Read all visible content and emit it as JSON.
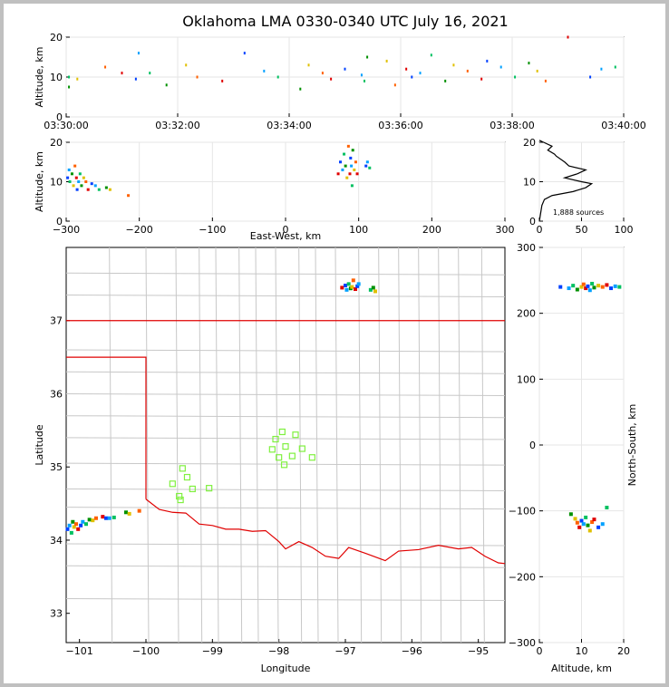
{
  "title": "Oklahoma LMA 0330-0340 UTC July 16, 2021",
  "colors": {
    "frame": "#c0c0c0",
    "state_border": "#e00000",
    "county": "#c8c8c8",
    "station": "#80f040"
  },
  "sources_label": "1,888 sources",
  "panels": {
    "time_height": {
      "ylabel": "Altitude, km",
      "xticks": [
        "03:30:00",
        "03:32:00",
        "03:34:00",
        "03:36:00",
        "03:38:00",
        "03:40:00"
      ],
      "yticks": [
        "0",
        "10",
        "20"
      ]
    },
    "ew_height": {
      "ylabel": "Altitude, km",
      "xlabel": "East-West, km",
      "xticks": [
        "−300",
        "−200",
        "−100",
        "0",
        "100",
        "200",
        "300"
      ],
      "yticks": [
        "0",
        "10",
        "20"
      ]
    },
    "histogram": {
      "xticks": [
        "0",
        "50",
        "100"
      ],
      "yticks": [
        "0",
        "10",
        "20"
      ]
    },
    "map": {
      "xlabel": "Longitude",
      "ylabel": "Latitude",
      "xticks": [
        "−101",
        "−100",
        "−99",
        "−98",
        "−97",
        "−96",
        "−95"
      ],
      "yticks": [
        "33",
        "34",
        "35",
        "36",
        "37"
      ]
    },
    "ns_height": {
      "xlabel": "Altitude, km",
      "ylabel": "North-South, km",
      "xticks": [
        "0",
        "10",
        "20"
      ],
      "yticks": [
        "−300",
        "−200",
        "−100",
        "0",
        "100",
        "200",
        "300"
      ]
    }
  },
  "chart_data": [
    {
      "type": "scatter",
      "name": "time-height",
      "x_unit": "minutes after 03:30 UTC",
      "xlim": [
        0,
        10
      ],
      "ylim": [
        0,
        20
      ],
      "x": [
        0.05,
        0.05,
        0.2,
        0.7,
        1.0,
        1.25,
        1.3,
        1.5,
        1.8,
        2.15,
        2.35,
        2.8,
        3.2,
        3.55,
        3.8,
        4.2,
        4.35,
        4.6,
        4.75,
        5.0,
        5.3,
        5.35,
        5.4,
        5.75,
        5.9,
        6.1,
        6.2,
        6.35,
        6.55,
        6.8,
        6.95,
        7.2,
        7.45,
        7.55,
        7.8,
        8.05,
        8.3,
        8.45,
        8.6,
        9.0,
        9.4,
        9.6,
        9.85
      ],
      "y": [
        10,
        7.5,
        9.5,
        12.5,
        11,
        9.5,
        16,
        11,
        8,
        13,
        10,
        9,
        16,
        11.5,
        10,
        7,
        13,
        11,
        9.5,
        12,
        10.5,
        9,
        15,
        14,
        8,
        12,
        10,
        11,
        15.5,
        9,
        13,
        11.5,
        9.5,
        14,
        12.5,
        10,
        13.5,
        11.5,
        9,
        20,
        10,
        12,
        12.5
      ]
    },
    {
      "type": "scatter",
      "name": "east-west vs altitude",
      "xlim": [
        -300,
        300
      ],
      "ylim": [
        0,
        20
      ],
      "x": [
        -298,
        -296,
        -295,
        -292,
        -290,
        -288,
        -286,
        -285,
        -283,
        -281,
        -279,
        -276,
        -273,
        -270,
        -265,
        -260,
        -255,
        -245,
        -240,
        -215,
        72,
        75,
        78,
        80,
        82,
        84,
        86,
        88,
        89,
        90,
        91,
        92,
        94,
        96,
        98,
        110,
        112,
        115
      ],
      "y": [
        11,
        13,
        10,
        12,
        9,
        14,
        11,
        8,
        10,
        12,
        9,
        11,
        10,
        8,
        9.5,
        9,
        8,
        8.5,
        8,
        6.5,
        12,
        15,
        13,
        17,
        14,
        11,
        19,
        12,
        16,
        14,
        9,
        18,
        13,
        15,
        12,
        14,
        15,
        13.5
      ]
    },
    {
      "type": "line",
      "name": "source count by altitude",
      "xlim": [
        0,
        100
      ],
      "ylim": [
        0,
        20
      ],
      "x": [
        0,
        3,
        6,
        15,
        40,
        55,
        62,
        50,
        30,
        45,
        55,
        35,
        30,
        20,
        18,
        10,
        15,
        5,
        0
      ],
      "y": [
        0,
        4,
        5.5,
        6.5,
        7.5,
        8.5,
        9.5,
        10,
        11,
        12,
        13,
        14,
        15,
        16.5,
        17,
        18,
        19,
        20,
        21
      ]
    },
    {
      "type": "scatter",
      "name": "map sources",
      "xlim": [
        -101.2,
        -94.6
      ],
      "ylim": [
        32.6,
        38.0
      ],
      "x": [
        -101.18,
        -101.15,
        -101.12,
        -101.1,
        -101.08,
        -101.05,
        -101.02,
        -100.98,
        -100.95,
        -100.9,
        -100.85,
        -100.8,
        -100.75,
        -100.65,
        -100.6,
        -100.55,
        -100.48,
        -100.3,
        -100.25,
        -100.1,
        -97.05,
        -97.0,
        -96.98,
        -96.95,
        -96.92,
        -96.9,
        -96.88,
        -96.85,
        -96.82,
        -96.8,
        -96.62,
        -96.58,
        -96.55
      ],
      "y": [
        34.15,
        34.2,
        34.1,
        34.25,
        34.18,
        34.22,
        34.15,
        34.2,
        34.25,
        34.22,
        34.28,
        34.27,
        34.3,
        34.32,
        34.3,
        34.3,
        34.31,
        34.38,
        34.36,
        34.4,
        37.45,
        37.48,
        37.42,
        37.5,
        37.44,
        37.46,
        37.55,
        37.43,
        37.47,
        37.5,
        37.42,
        37.45,
        37.4
      ]
    },
    {
      "type": "scatter",
      "name": "altitude vs north-south",
      "xlim": [
        0,
        20
      ],
      "ylim": [
        -300,
        300
      ],
      "x": [
        5,
        7,
        8,
        9,
        10,
        10.5,
        11,
        11.5,
        12,
        12.5,
        13,
        14,
        15,
        16,
        17,
        18,
        19,
        7.5,
        8.5,
        9,
        9.5,
        10,
        10.5,
        11,
        11.5,
        12,
        12.5,
        13,
        14,
        15,
        16
      ],
      "y": [
        240,
        238,
        242,
        236,
        240,
        244,
        238,
        241,
        235,
        245,
        239,
        242,
        240,
        243,
        238,
        241,
        240,
        -105,
        -112,
        -118,
        -125,
        -115,
        -120,
        -110,
        -122,
        -130,
        -117,
        -113,
        -125,
        -120,
        -95
      ]
    }
  ],
  "stations": {
    "lon": [
      -97.95,
      -98.05,
      -97.75,
      -97.9,
      -98.1,
      -97.65,
      -97.8,
      -98.0,
      -97.92,
      -97.5,
      -99.45,
      -99.38,
      -99.6,
      -99.3,
      -99.48,
      -99.5,
      -99.05
    ],
    "lat": [
      35.48,
      35.38,
      35.44,
      35.28,
      35.24,
      35.25,
      35.15,
      35.13,
      35.03,
      35.13,
      34.98,
      34.86,
      34.77,
      34.7,
      34.55,
      34.6,
      34.71
    ]
  }
}
